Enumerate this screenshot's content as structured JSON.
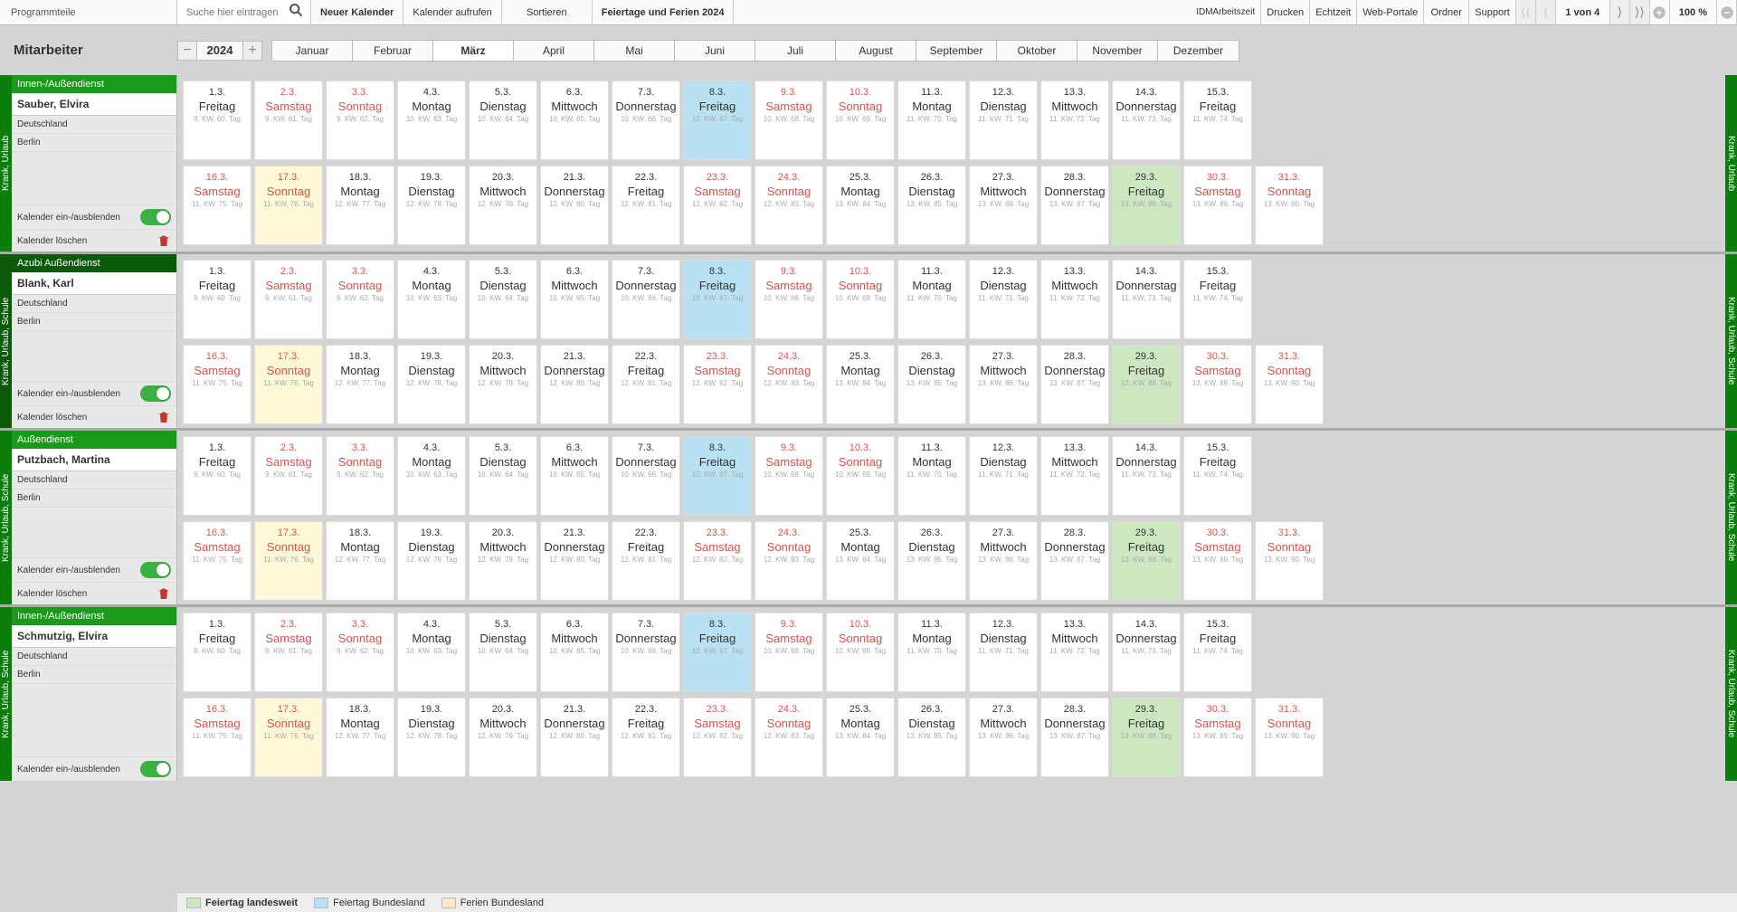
{
  "toolbar": {
    "programmteile": "Programmteile",
    "search_placeholder": "Suche hier eintragen",
    "neuer_kalender": "Neuer Kalender",
    "kalender_aufrufen": "Kalender aufrufen",
    "sortieren": "Sortieren",
    "feiertage": "Feiertage und Ferien 2024",
    "idm_l1": "IDM",
    "idm_l2": "Arbeitszeit",
    "drucken": "Drucken",
    "echtzeit": "Echtzeit",
    "webportale": "Web-Portale",
    "ordner": "Ordner",
    "support": "Support",
    "page_info": "1 von 4",
    "zoom": "100 %"
  },
  "header": {
    "title": "Mitarbeiter",
    "year": "2024",
    "months": [
      "Januar",
      "Februar",
      "März",
      "April",
      "Mai",
      "Juni",
      "Juli",
      "August",
      "September",
      "Oktober",
      "November",
      "Dezember"
    ],
    "active_month_index": 2
  },
  "side_labels": {
    "krank_urlaub": "Krank, Urlaub",
    "krank_urlaub_schule": "Krank, Urlaub, Schule"
  },
  "emp_panel_labels": {
    "toggle_label": "Kalender ein-/ausblenden",
    "delete_label": "Kalender löschen"
  },
  "employees": [
    {
      "dept": "Innen-/Außendienst",
      "name": "Sauber, Elvira",
      "country": "Deutschland",
      "city": "Berlin",
      "side_left": "krank_urlaub",
      "side_right": "krank_urlaub",
      "left_dark": false
    },
    {
      "dept": "Azubi Außendienst",
      "name": "Blank, Karl",
      "country": "Deutschland",
      "city": "Berlin",
      "side_left": "krank_urlaub_schule",
      "side_right": "krank_urlaub_schule",
      "left_dark": true
    },
    {
      "dept": "Außendienst",
      "name": "Putzbach, Martina",
      "country": "Deutschland",
      "city": "Berlin",
      "side_left": "krank_urlaub_schule",
      "side_right": "krank_urlaub_schule",
      "left_dark": false
    },
    {
      "dept": "Innen-/Außendienst",
      "name": "Schmutzig, Elvira",
      "country": "Deutschland",
      "city": "Berlin",
      "side_left": "krank_urlaub_schule",
      "side_right": "krank_urlaub_schule",
      "left_dark": false
    }
  ],
  "calendar": {
    "row1": [
      {
        "d": "1.3.",
        "wd": "Freitag",
        "sub": "9. KW. 60. Tag"
      },
      {
        "d": "2.3.",
        "wd": "Samstag",
        "sub": "9. KW. 61. Tag",
        "weekend": true
      },
      {
        "d": "3.3.",
        "wd": "Sonntag",
        "sub": "9. KW. 62. Tag",
        "weekend": true
      },
      {
        "d": "4.3.",
        "wd": "Montag",
        "sub": "10. KW. 63. Tag"
      },
      {
        "d": "5.3.",
        "wd": "Dienstag",
        "sub": "10. KW. 64. Tag"
      },
      {
        "d": "6.3.",
        "wd": "Mittwoch",
        "sub": "10. KW. 65. Tag"
      },
      {
        "d": "7.3.",
        "wd": "Donnerstag",
        "sub": "10. KW. 66. Tag"
      },
      {
        "d": "8.3.",
        "wd": "Freitag",
        "sub": "10. KW. 67. Tag",
        "hl": "blue"
      },
      {
        "d": "9.3.",
        "wd": "Samstag",
        "sub": "10. KW. 68. Tag",
        "weekend": true
      },
      {
        "d": "10.3.",
        "wd": "Sonntag",
        "sub": "10. KW. 69. Tag",
        "weekend": true
      },
      {
        "d": "11.3.",
        "wd": "Montag",
        "sub": "11. KW. 70. Tag"
      },
      {
        "d": "12.3.",
        "wd": "Dienstag",
        "sub": "11. KW. 71. Tag"
      },
      {
        "d": "13.3.",
        "wd": "Mittwoch",
        "sub": "11. KW. 72. Tag"
      },
      {
        "d": "14.3.",
        "wd": "Donnerstag",
        "sub": "11. KW. 73. Tag"
      },
      {
        "d": "15.3.",
        "wd": "Freitag",
        "sub": "11. KW. 74. Tag"
      }
    ],
    "row2": [
      {
        "d": "16.3.",
        "wd": "Samstag",
        "sub": "11. KW. 75. Tag",
        "weekend": true
      },
      {
        "d": "17.3.",
        "wd": "Sonntag",
        "sub": "11. KW. 76. Tag",
        "weekend": true,
        "hl": "yellow"
      },
      {
        "d": "18.3.",
        "wd": "Montag",
        "sub": "12. KW. 77. Tag"
      },
      {
        "d": "19.3.",
        "wd": "Dienstag",
        "sub": "12. KW. 78. Tag"
      },
      {
        "d": "20.3.",
        "wd": "Mittwoch",
        "sub": "12. KW. 79. Tag"
      },
      {
        "d": "21.3.",
        "wd": "Donnerstag",
        "sub": "12. KW. 80. Tag"
      },
      {
        "d": "22.3.",
        "wd": "Freitag",
        "sub": "12. KW. 81. Tag"
      },
      {
        "d": "23.3.",
        "wd": "Samstag",
        "sub": "12. KW. 82. Tag",
        "weekend": true
      },
      {
        "d": "24.3.",
        "wd": "Sonntag",
        "sub": "12. KW. 83. Tag",
        "weekend": true
      },
      {
        "d": "25.3.",
        "wd": "Montag",
        "sub": "13. KW. 84. Tag"
      },
      {
        "d": "26.3.",
        "wd": "Dienstag",
        "sub": "13. KW. 85. Tag"
      },
      {
        "d": "27.3.",
        "wd": "Mittwoch",
        "sub": "13. KW. 86. Tag"
      },
      {
        "d": "28.3.",
        "wd": "Donnerstag",
        "sub": "13. KW. 87. Tag"
      },
      {
        "d": "29.3.",
        "wd": "Freitag",
        "sub": "13. KW. 88. Tag",
        "hl": "green"
      },
      {
        "d": "30.3.",
        "wd": "Samstag",
        "sub": "13. KW. 89. Tag",
        "weekend": true
      },
      {
        "d": "31.3.",
        "wd": "Sonntag",
        "sub": "13. KW. 90. Tag",
        "weekend": true
      }
    ]
  },
  "legend": {
    "feiertag_landesweit": "Feiertag landesweit",
    "feiertag_bundesland": "Feiertag Bundesland",
    "ferien_bundesland": "Ferien Bundesland"
  }
}
